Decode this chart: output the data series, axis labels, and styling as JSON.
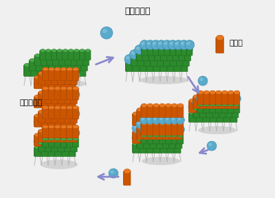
{
  "bg_color": "#f0f0f0",
  "text_kinzoku": "金属イオン",
  "text_bainder": "バインダー",
  "text_haizaishi": "配位子",
  "text_color": "#000000",
  "green_dark": "#1e6b1e",
  "green_mid": "#2d8b2d",
  "green_light": "#4aaa4a",
  "orange_dark": "#a84800",
  "orange_mid": "#cc5500",
  "orange_light": "#e87820",
  "cyan_dark": "#3a8aaa",
  "cyan_mid": "#5aaacc",
  "cyan_light": "#90cce0",
  "stem_color": "#b8b8b8",
  "stem_dark": "#888888",
  "shadow_color": "#a8a8a8",
  "arrow_color": "#8888cc",
  "figsize": [
    4.0,
    2.89
  ],
  "dpi": 100
}
